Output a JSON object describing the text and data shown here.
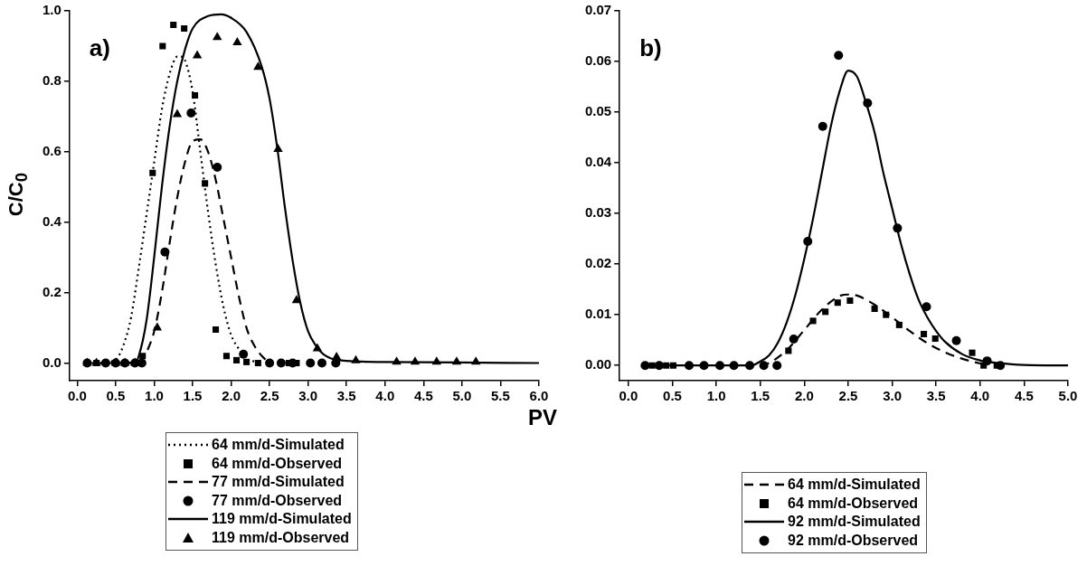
{
  "chart_data": [
    {
      "type": "line",
      "ylabel": "C/C$_{0}$",
      "xlabel": "PV",
      "annotations": [
        "a)"
      ],
      "legend": "bottom",
      "grid": false,
      "xlim": [
        -0.1,
        6.0
      ],
      "ylim": [
        -0.05,
        1.0
      ],
      "xticks": [
        {
          "value": 0,
          "label": "0.0"
        },
        {
          "value": 0.5,
          "label": "0.5"
        },
        {
          "value": 1,
          "label": "1.0"
        },
        {
          "value": 1.5,
          "label": "1.5"
        },
        {
          "value": 2,
          "label": "2.0"
        },
        {
          "value": 2.5,
          "label": "2.5"
        },
        {
          "value": 3,
          "label": "3.0"
        },
        {
          "value": 3.5,
          "label": "3.5"
        },
        {
          "value": 4,
          "label": "4.0"
        },
        {
          "value": 4.5,
          "label": "4.5"
        },
        {
          "value": 5,
          "label": "5.0"
        },
        {
          "value": 5.5,
          "label": "5.5"
        },
        {
          "value": 6,
          "label": "6.0"
        }
      ],
      "yticks": [
        {
          "value": 0,
          "label": "0.0"
        },
        {
          "value": 0.2,
          "label": "0.2"
        },
        {
          "value": 0.4,
          "label": "0.4"
        },
        {
          "value": 0.6,
          "label": "0.6"
        },
        {
          "value": 0.8,
          "label": "0.8"
        },
        {
          "value": 1,
          "label": "1.0"
        }
      ],
      "series": [
        {
          "name": "64 mm/d-Simulated",
          "type": "line",
          "line_style": "dotted",
          "color": "#000000",
          "x": [
            0.3,
            0.5,
            0.6,
            0.7,
            0.8,
            0.9,
            1.0,
            1.1,
            1.2,
            1.3,
            1.35,
            1.4,
            1.5,
            1.6,
            1.7,
            1.8,
            1.9,
            2.0,
            2.1,
            2.2,
            2.3
          ],
          "values": [
            0,
            0.01,
            0.05,
            0.13,
            0.27,
            0.42,
            0.57,
            0.72,
            0.82,
            0.87,
            0.87,
            0.86,
            0.77,
            0.6,
            0.43,
            0.28,
            0.16,
            0.08,
            0.04,
            0.01,
            0.005
          ]
        },
        {
          "name": "64 mm/d-Observed",
          "type": "scatter",
          "marker": "square",
          "color": "#000000",
          "x": [
            0.25,
            0.37,
            0.62,
            0.85,
            0.98,
            1.11,
            1.25,
            1.39,
            1.53,
            1.66,
            1.8,
            1.94,
            2.07,
            2.2,
            2.35,
            2.5,
            2.65,
            2.75,
            2.85
          ],
          "values": [
            0,
            0,
            0,
            0.02,
            0.54,
            0.9,
            0.96,
            0.95,
            0.76,
            0.51,
            0.095,
            0.02,
            0.008,
            0.003,
            0,
            0,
            0,
            0,
            0
          ]
        },
        {
          "name": "77 mm/d-Simulated",
          "type": "line",
          "line_style": "dashed",
          "color": "#000000",
          "x": [
            0.6,
            0.85,
            0.9,
            1.0,
            1.1,
            1.2,
            1.3,
            1.4,
            1.5,
            1.6,
            1.7,
            1.8,
            1.9,
            2.0,
            2.1,
            2.2,
            2.3,
            2.4,
            2.5
          ],
          "values": [
            0,
            0.01,
            0.03,
            0.09,
            0.2,
            0.34,
            0.47,
            0.57,
            0.63,
            0.635,
            0.6,
            0.52,
            0.41,
            0.3,
            0.19,
            0.1,
            0.05,
            0.02,
            0
          ]
        },
        {
          "name": "77 mm/d-Observed",
          "type": "scatter",
          "marker": "circle",
          "color": "#000000",
          "x": [
            0.13,
            0.37,
            0.5,
            0.62,
            0.75,
            0.84,
            1.14,
            1.48,
            1.82,
            2.16,
            2.5,
            2.65,
            2.8,
            3.03,
            3.18,
            3.36
          ],
          "values": [
            0,
            0,
            0,
            0,
            0,
            0,
            0.315,
            0.71,
            0.556,
            0.025,
            0,
            0,
            0,
            0,
            0,
            0
          ]
        },
        {
          "name": "119 mm/d-Simulated",
          "type": "line",
          "line_style": "solid",
          "color": "#000000",
          "x": [
            0.1,
            0.75,
            0.8,
            0.9,
            1.0,
            1.1,
            1.2,
            1.3,
            1.4,
            1.5,
            1.7,
            1.87,
            2.0,
            2.2,
            2.4,
            2.5,
            2.6,
            2.7,
            2.8,
            2.9,
            3.0,
            3.1,
            3.2,
            3.4,
            4.0,
            6.0
          ],
          "values": [
            0,
            0,
            0.02,
            0.12,
            0.3,
            0.5,
            0.67,
            0.8,
            0.89,
            0.95,
            0.985,
            0.99,
            0.98,
            0.94,
            0.84,
            0.75,
            0.61,
            0.44,
            0.29,
            0.17,
            0.09,
            0.05,
            0.025,
            0.008,
            0.003,
            0
          ]
        },
        {
          "name": "119 mm/d-Observed",
          "type": "scatter",
          "marker": "triangle",
          "color": "#000000",
          "x": [
            0.13,
            0.25,
            0.5,
            0.62,
            0.75,
            1.04,
            1.3,
            1.56,
            1.82,
            2.08,
            2.35,
            2.61,
            2.85,
            3.12,
            3.37,
            3.62,
            4.15,
            4.39,
            4.67,
            4.93,
            5.18
          ],
          "values": [
            0,
            0,
            0,
            0,
            0,
            0.1,
            0.706,
            0.873,
            0.925,
            0.91,
            0.84,
            0.607,
            0.178,
            0.041,
            0.017,
            0.007,
            0.003,
            0.003,
            0.003,
            0.003,
            0.003
          ]
        }
      ]
    },
    {
      "type": "line",
      "annotations": [
        "b)"
      ],
      "legend": "bottom",
      "grid": false,
      "xlim": [
        -0.1,
        5.0
      ],
      "ylim": [
        -0.003,
        0.07
      ],
      "xticks": [
        {
          "value": 0,
          "label": "0.0"
        },
        {
          "value": 0.5,
          "label": "0.5"
        },
        {
          "value": 1,
          "label": "1.0"
        },
        {
          "value": 1.5,
          "label": "1.5"
        },
        {
          "value": 2,
          "label": "2.0"
        },
        {
          "value": 2.5,
          "label": "2.5"
        },
        {
          "value": 3,
          "label": "3.0"
        },
        {
          "value": 3.5,
          "label": "3.5"
        },
        {
          "value": 4,
          "label": "4.0"
        },
        {
          "value": 4.5,
          "label": "4.5"
        },
        {
          "value": 5,
          "label": "5.0"
        }
      ],
      "yticks": [
        {
          "value": 0,
          "label": "0.00"
        },
        {
          "value": 0.01,
          "label": "0.01"
        },
        {
          "value": 0.02,
          "label": "0.02"
        },
        {
          "value": 0.03,
          "label": "0.03"
        },
        {
          "value": 0.04,
          "label": "0.04"
        },
        {
          "value": 0.05,
          "label": "0.05"
        },
        {
          "value": 0.06,
          "label": "0.06"
        },
        {
          "value": 0.07,
          "label": "0.07"
        }
      ],
      "series": [
        {
          "name": "64 mm/d-Simulated",
          "type": "line",
          "line_style": "dashed",
          "color": "#000000",
          "x": [
            1.5,
            1.6,
            1.8,
            2.0,
            2.2,
            2.4,
            2.5,
            2.6,
            2.8,
            3.0,
            3.2,
            3.4,
            3.6,
            3.8,
            4.0,
            4.1
          ],
          "values": [
            0,
            0.0005,
            0.003,
            0.007,
            0.011,
            0.0137,
            0.014,
            0.0138,
            0.012,
            0.0095,
            0.0068,
            0.0044,
            0.0026,
            0.0013,
            0.0004,
            0
          ]
        },
        {
          "name": "64 mm/d-Observed",
          "type": "scatter",
          "marker": "square",
          "color": "#000000",
          "x": [
            0.27,
            0.43,
            0.51,
            1.82,
            2.1,
            2.24,
            2.38,
            2.52,
            2.8,
            2.93,
            3.08,
            3.36,
            3.49,
            3.91,
            4.04,
            4.19
          ],
          "values": [
            0,
            0,
            0,
            0.0029,
            0.0088,
            0.0106,
            0.0124,
            0.0128,
            0.0112,
            0.01,
            0.008,
            0.0062,
            0.0053,
            0.0025,
            0,
            0
          ]
        },
        {
          "name": "92 mm/d-Simulated",
          "type": "line",
          "line_style": "solid",
          "color": "#000000",
          "x": [
            0.15,
            1.4,
            1.5,
            1.6,
            1.7,
            1.8,
            1.9,
            2.0,
            2.1,
            2.2,
            2.3,
            2.4,
            2.5,
            2.6,
            2.7,
            2.8,
            2.9,
            3.0,
            3.1,
            3.2,
            3.3,
            3.4,
            3.5,
            3.6,
            3.8,
            4.0,
            4.2,
            4.5,
            5.0
          ],
          "values": [
            0,
            0,
            0.0008,
            0.002,
            0.0045,
            0.0085,
            0.014,
            0.021,
            0.029,
            0.038,
            0.047,
            0.054,
            0.0582,
            0.057,
            0.052,
            0.046,
            0.038,
            0.031,
            0.024,
            0.018,
            0.013,
            0.0095,
            0.0068,
            0.0047,
            0.0022,
            0.001,
            0.0005,
            0.0001,
            0
          ]
        },
        {
          "name": "92 mm/d-Observed",
          "type": "scatter",
          "marker": "circle",
          "color": "#000000",
          "x": [
            0.19,
            0.35,
            0.69,
            0.86,
            1.04,
            1.2,
            1.38,
            1.54,
            1.69,
            1.88,
            2.04,
            2.21,
            2.39,
            2.72,
            3.06,
            3.39,
            3.73,
            4.08,
            4.23
          ],
          "values": [
            0,
            0,
            0,
            0,
            0,
            0,
            0,
            0,
            0,
            0.0052,
            0.0245,
            0.0472,
            0.0612,
            0.0518,
            0.0271,
            0.0116,
            0.0049,
            0.0009,
            0
          ]
        }
      ]
    }
  ]
}
